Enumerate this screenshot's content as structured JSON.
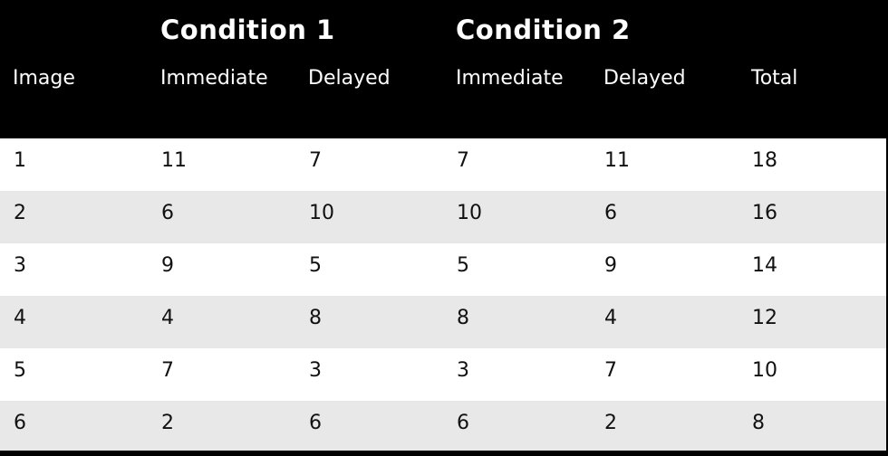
{
  "groups": {
    "condition1": "Condition 1",
    "condition2": "Condition 2"
  },
  "columns": [
    "Image",
    "Immediate",
    "Delayed",
    "Immediate",
    "Delayed",
    "Total"
  ],
  "rows": [
    [
      "1",
      "11",
      "7",
      "7",
      "11",
      "18"
    ],
    [
      "2",
      "6",
      "10",
      "10",
      "6",
      "16"
    ],
    [
      "3",
      "9",
      "5",
      "5",
      "9",
      "14"
    ],
    [
      "4",
      "4",
      "8",
      "8",
      "4",
      "12"
    ],
    [
      "5",
      "7",
      "3",
      "3",
      "7",
      "10"
    ],
    [
      "6",
      "2",
      "6",
      "6",
      "2",
      "8"
    ]
  ],
  "colors": {
    "header_bg": "#000000",
    "header_text": "#ffffff",
    "row_odd": "#ffffff",
    "row_even": "#e8e8e8",
    "cell_text": "#111111"
  }
}
